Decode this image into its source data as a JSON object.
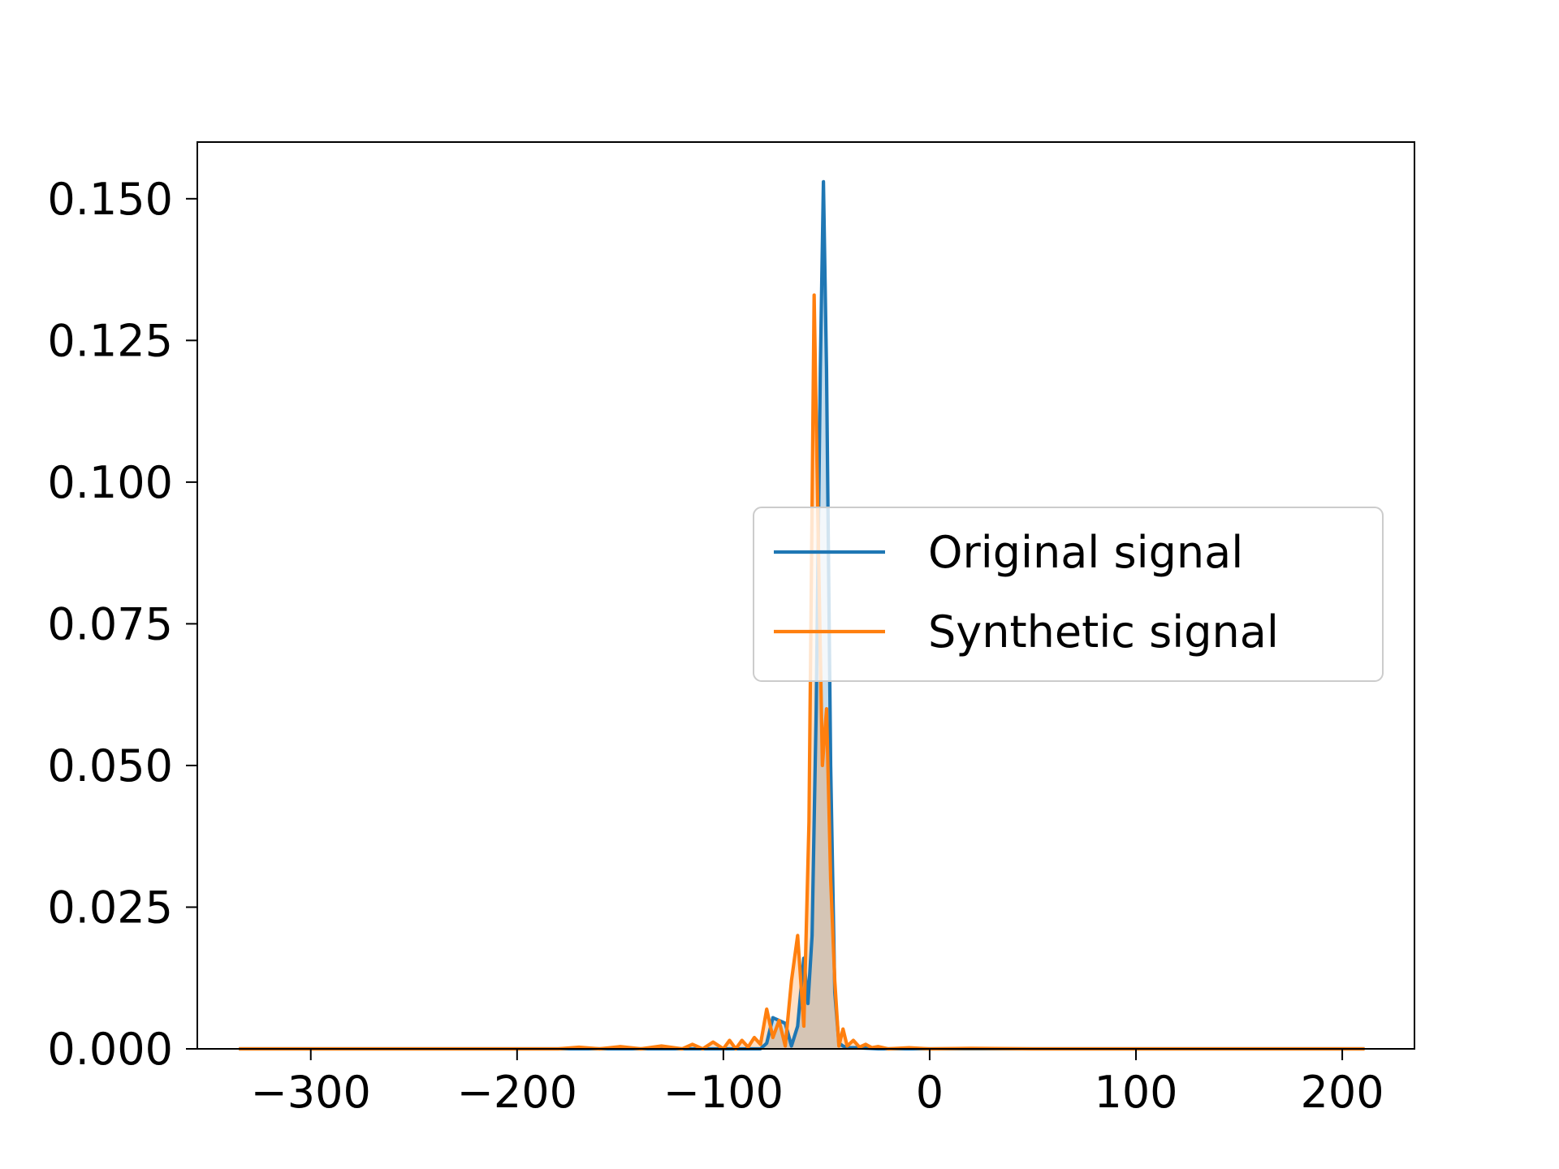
{
  "chart_data": {
    "type": "line",
    "title": "",
    "xlabel": "",
    "ylabel": "",
    "xlim": [
      -355,
      235
    ],
    "ylim": [
      0,
      0.16
    ],
    "grid": false,
    "legend_placement": "center-right",
    "x_ticks": [
      {
        "value": -300,
        "label": "−300"
      },
      {
        "value": -200,
        "label": "−200"
      },
      {
        "value": -100,
        "label": "−100"
      },
      {
        "value": 0,
        "label": "0"
      },
      {
        "value": 100,
        "label": "100"
      },
      {
        "value": 200,
        "label": "200"
      }
    ],
    "y_ticks": [
      {
        "value": 0.0,
        "label": "0.000"
      },
      {
        "value": 0.025,
        "label": "0.025"
      },
      {
        "value": 0.05,
        "label": "0.050"
      },
      {
        "value": 0.075,
        "label": "0.075"
      },
      {
        "value": 0.1,
        "label": "0.100"
      },
      {
        "value": 0.125,
        "label": "0.125"
      },
      {
        "value": 0.15,
        "label": "0.150"
      }
    ],
    "series": [
      {
        "name": "Original signal",
        "color": "#1f77b4",
        "fill": true,
        "x": [
          -334,
          -100,
          -82,
          -79,
          -76,
          -73,
          -70,
          -67,
          -64,
          -61,
          -59,
          -57,
          -55,
          -53,
          -51.5,
          -50,
          -48,
          -46,
          -44,
          -42,
          -40,
          -35,
          -25,
          210
        ],
        "y": [
          0,
          0,
          0,
          0.001,
          0.0055,
          0.005,
          0.0045,
          0.0005,
          0.004,
          0.016,
          0.008,
          0.02,
          0.06,
          0.12,
          0.153,
          0.12,
          0.05,
          0.01,
          0.001,
          0.0005,
          0.0002,
          0.0002,
          0,
          0
        ]
      },
      {
        "name": "Synthetic signal",
        "color": "#ff7f0e",
        "fill": true,
        "x": [
          -334,
          -180,
          -170,
          -160,
          -150,
          -140,
          -130,
          -120,
          -115,
          -110,
          -105,
          -100,
          -97,
          -94,
          -91,
          -88,
          -85,
          -82,
          -79,
          -76,
          -73,
          -70,
          -67,
          -64,
          -61,
          -58.5,
          -56,
          -54,
          -52,
          -50,
          -48,
          -46,
          -44,
          -42,
          -40,
          -37,
          -34,
          -31,
          -28,
          -25,
          -20,
          -10,
          0,
          20,
          50,
          100,
          210
        ],
        "y": [
          0,
          0,
          0.0003,
          0,
          0.0004,
          0,
          0.0005,
          0,
          0.0008,
          0,
          0.0012,
          0,
          0.0015,
          0,
          0.0015,
          0.0003,
          0.002,
          0.0008,
          0.007,
          0.002,
          0.005,
          0.0005,
          0.012,
          0.02,
          0.004,
          0.04,
          0.133,
          0.09,
          0.05,
          0.06,
          0.03,
          0.012,
          0.0005,
          0.0035,
          0.0005,
          0.0015,
          0.0003,
          0.0008,
          0.0002,
          0.0004,
          0,
          0.0002,
          0,
          0.0001,
          0,
          0,
          0
        ]
      }
    ]
  }
}
